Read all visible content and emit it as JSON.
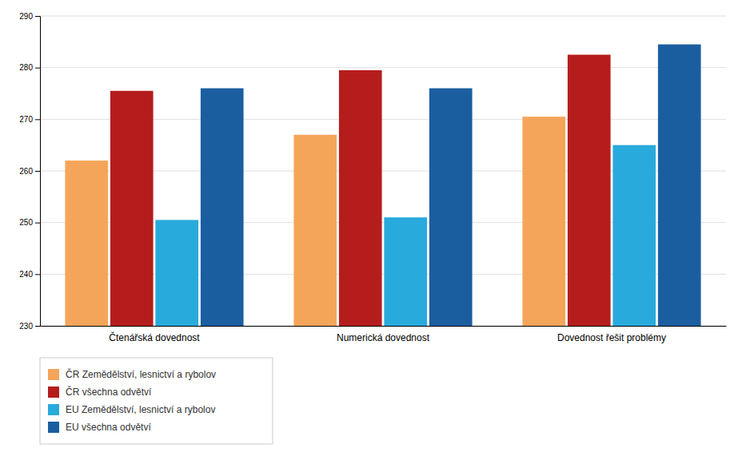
{
  "chart_data": {
    "type": "bar",
    "categories": [
      "Čtenářská dovednost",
      "Numerická dovednost",
      "Dovednost řešit problémy"
    ],
    "series": [
      {
        "name": "ČR Zemědělství, lesnictví a rybolov",
        "color": "#F5A55A",
        "values": [
          262,
          267,
          270.5
        ]
      },
      {
        "name": "ČR všechna odvětví",
        "color": "#B51D1D",
        "values": [
          275.5,
          279.5,
          282.5
        ]
      },
      {
        "name": "EU Zemědělství, lesnictví a rybolov",
        "color": "#29AADC",
        "values": [
          250.5,
          251,
          265
        ]
      },
      {
        "name": "EU všechna odvětví",
        "color": "#1B5EA0",
        "values": [
          276,
          276,
          284.5
        ]
      }
    ],
    "ylim": [
      230,
      290
    ],
    "yticks": [
      230,
      240,
      250,
      260,
      270,
      280,
      290
    ],
    "grid": true,
    "legend": "bottom"
  }
}
